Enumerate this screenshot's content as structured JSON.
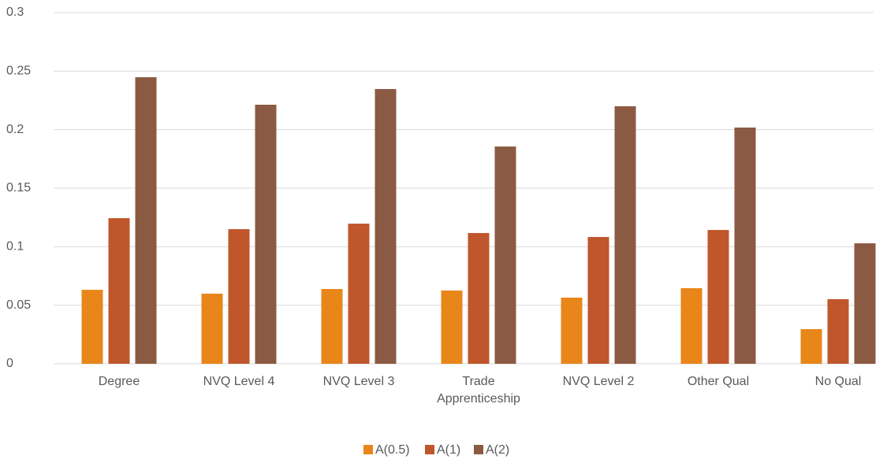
{
  "chart_data": {
    "type": "bar",
    "categories": [
      "Degree",
      "NVQ Level 4",
      "NVQ Level 3",
      "Trade Apprenticeship",
      "NVQ Level 2",
      "Other Qual",
      "No Qual"
    ],
    "series": [
      {
        "name": "A(0.5)",
        "color": "#e8861a",
        "values": [
          0.0632,
          0.0599,
          0.0639,
          0.0626,
          0.0565,
          0.0646,
          0.0296
        ]
      },
      {
        "name": "A(1)",
        "color": "#c0562c",
        "values": [
          0.1244,
          0.115,
          0.1197,
          0.1117,
          0.1083,
          0.1143,
          0.0552
        ]
      },
      {
        "name": "A(2)",
        "color": "#8b5a42",
        "values": [
          0.2448,
          0.2213,
          0.2347,
          0.1856,
          0.22,
          0.2018,
          0.1029
        ]
      }
    ],
    "ylim": [
      0,
      0.3
    ],
    "yticks": [
      0,
      0.05,
      0.1,
      0.15,
      0.2,
      0.25,
      0.3
    ],
    "grid": true,
    "legend": "bottom"
  }
}
